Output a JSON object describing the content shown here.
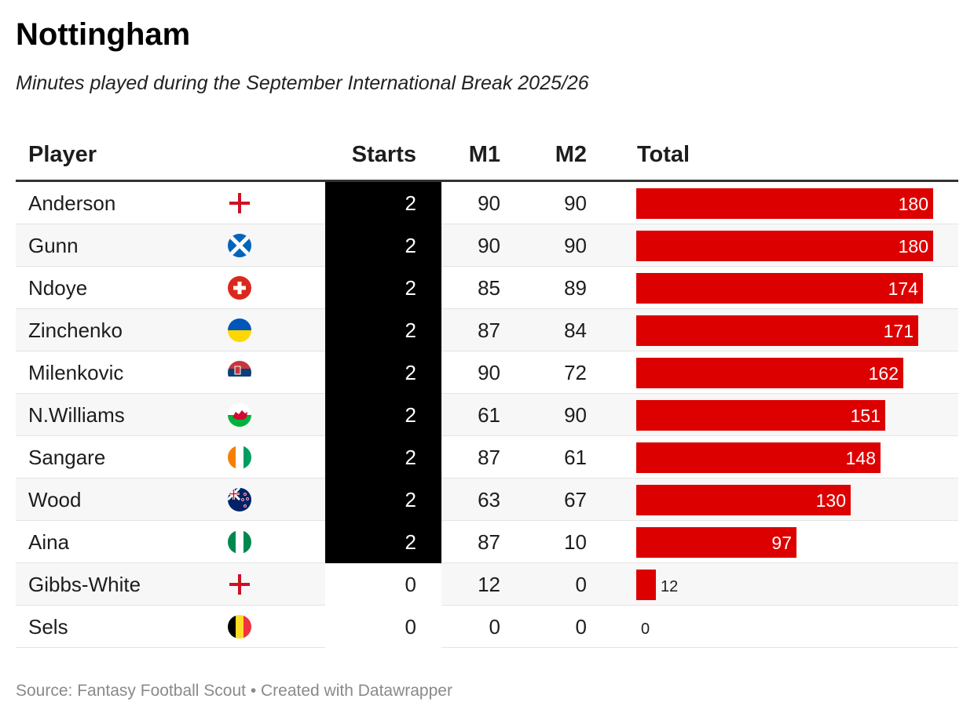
{
  "header": {
    "title": "Nottingham",
    "subtitle": "Minutes played during the September International Break 2025/26"
  },
  "columns": {
    "player": "Player",
    "starts": "Starts",
    "m1": "M1",
    "m2": "M2",
    "total": "Total"
  },
  "footer": {
    "source": "Source: Fantasy Football Scout • Created with Datawrapper"
  },
  "colors": {
    "bar": "#dd0000",
    "starts_highlight": "#000000"
  },
  "chart_data": {
    "type": "table",
    "title": "Nottingham",
    "subtitle": "Minutes played during the September International Break 2025/26",
    "bar_max": 180,
    "rows": [
      {
        "player": "Anderson",
        "flag": "england-flag-icon",
        "starts": 2,
        "m1": 90,
        "m2": 90,
        "total": 180
      },
      {
        "player": "Gunn",
        "flag": "scotland-flag-icon",
        "starts": 2,
        "m1": 90,
        "m2": 90,
        "total": 180
      },
      {
        "player": "Ndoye",
        "flag": "switzerland-flag-icon",
        "starts": 2,
        "m1": 85,
        "m2": 89,
        "total": 174
      },
      {
        "player": "Zinchenko",
        "flag": "ukraine-flag-icon",
        "starts": 2,
        "m1": 87,
        "m2": 84,
        "total": 171
      },
      {
        "player": "Milenkovic",
        "flag": "serbia-flag-icon",
        "starts": 2,
        "m1": 90,
        "m2": 72,
        "total": 162
      },
      {
        "player": "N.Williams",
        "flag": "wales-flag-icon",
        "starts": 2,
        "m1": 61,
        "m2": 90,
        "total": 151
      },
      {
        "player": "Sangare",
        "flag": "ivory-coast-flag-icon",
        "starts": 2,
        "m1": 87,
        "m2": 61,
        "total": 148
      },
      {
        "player": "Wood",
        "flag": "new-zealand-flag-icon",
        "starts": 2,
        "m1": 63,
        "m2": 67,
        "total": 130
      },
      {
        "player": "Aina",
        "flag": "nigeria-flag-icon",
        "starts": 2,
        "m1": 87,
        "m2": 10,
        "total": 97
      },
      {
        "player": "Gibbs-White",
        "flag": "england-flag-icon",
        "starts": 0,
        "m1": 12,
        "m2": 0,
        "total": 12
      },
      {
        "player": "Sels",
        "flag": "belgium-flag-icon",
        "starts": 0,
        "m1": 0,
        "m2": 0,
        "total": 0
      }
    ]
  }
}
